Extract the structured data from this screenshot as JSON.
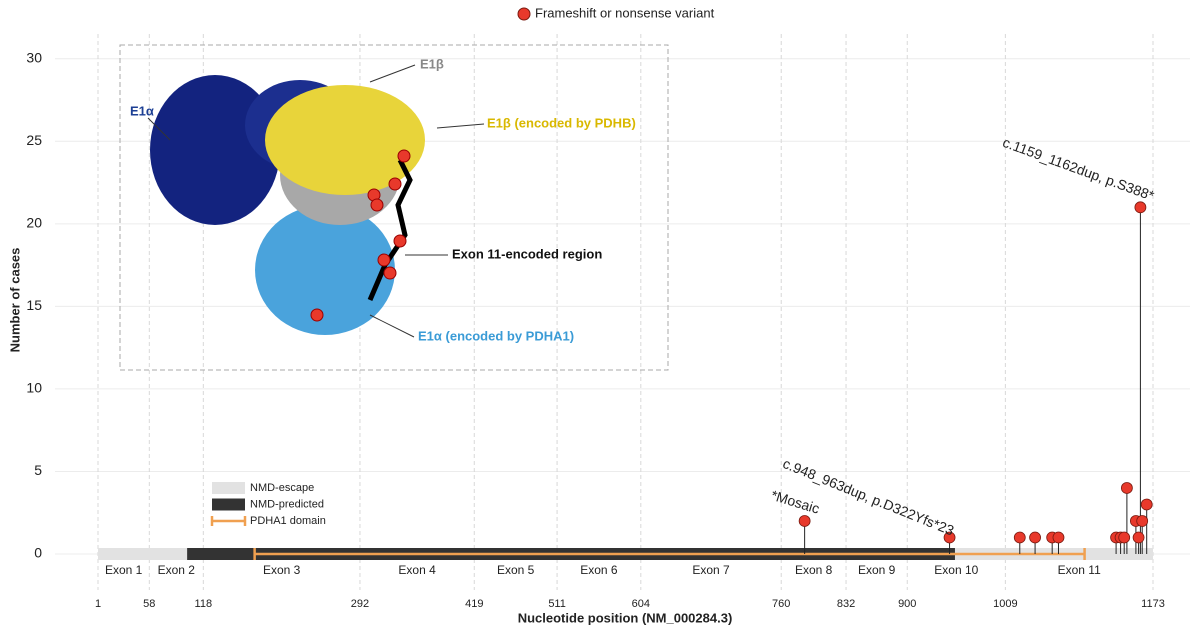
{
  "chart_data": {
    "type": "lollipop",
    "legend": "Frameshift or nonsense variant",
    "xlabel": "Nucleotide position (NM_000284.3)",
    "ylabel": "Number of cases",
    "x": [
      786,
      947,
      1025,
      1042,
      1061,
      1068,
      1132,
      1137,
      1141,
      1144,
      1154,
      1157,
      1159,
      1161,
      1166
    ],
    "series": [
      {
        "name": "Frameshift or nonsense variant",
        "color": "#e8392b",
        "values": [
          2,
          1,
          1,
          1,
          1,
          1,
          1,
          1,
          1,
          4,
          2,
          1,
          21,
          2,
          3
        ]
      }
    ],
    "xlim": [
      1,
      1173
    ],
    "ylim": [
      0,
      31.5
    ],
    "xticks": [
      1,
      58,
      118,
      292,
      419,
      511,
      604,
      760,
      832,
      900,
      1009,
      1173
    ],
    "yticks": [
      0,
      5,
      10,
      15,
      20,
      25,
      30
    ],
    "grid": true,
    "exons": [
      "Exon 1",
      "Exon 2",
      "Exon 3",
      "Exon 4",
      "Exon 5",
      "Exon 6",
      "Exon 7",
      "Exon 8",
      "Exon 9",
      "Exon 10",
      "Exon 11"
    ],
    "regions": [
      {
        "name": "NMD-escape",
        "color": "#e2e2e2",
        "ranges": [
          [
            1,
            100
          ],
          [
            953,
            1173
          ]
        ]
      },
      {
        "name": "NMD-predicted",
        "color": "#333333",
        "ranges": [
          [
            100,
            953
          ]
        ]
      },
      {
        "name": "PDHA1 domain",
        "color": "#f0a050",
        "ranges": [
          [
            175,
            1097
          ]
        ]
      }
    ],
    "annotations": [
      "c.1159_1162dup, p.S388*",
      "c.948_963dup, p.D322Yfs*23",
      "*Mosaic"
    ],
    "inset_labels": [
      "E1α",
      "E1β",
      "E1β (encoded by PDHB)",
      "Exon 11-encoded region",
      "E1α (encoded by PDHA1)"
    ]
  }
}
